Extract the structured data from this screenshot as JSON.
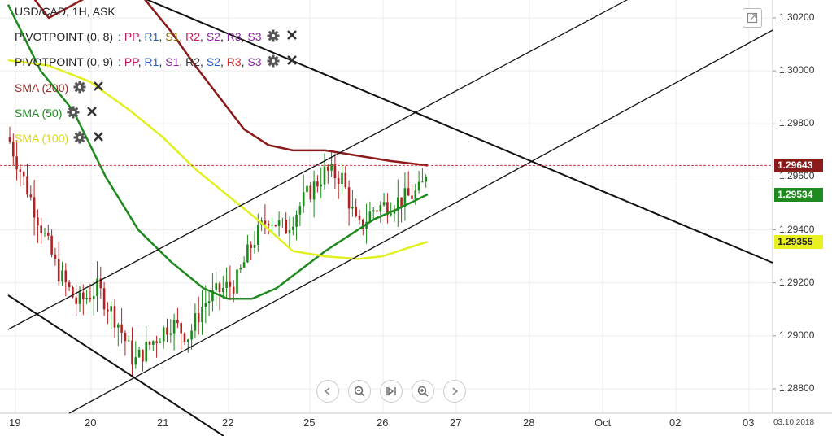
{
  "symbol_title": "USD/CAD, 1H, ASK",
  "indicators": [
    {
      "name": "PIVOTPOINT (0, 8)",
      "levels": [
        {
          "t": "PP",
          "c": "#c2185b"
        },
        {
          "t": "R1",
          "c": "#1e5fd0"
        },
        {
          "t": "S1",
          "c": "#8a6d00"
        },
        {
          "t": "R2",
          "c": "#c2185b"
        },
        {
          "t": "S2",
          "c": "#8e24aa"
        },
        {
          "t": "R3",
          "c": "#8e24aa"
        },
        {
          "t": "S3",
          "c": "#8e24aa"
        }
      ]
    },
    {
      "name": "PIVOTPOINT (0, 9)",
      "levels": [
        {
          "t": "PP",
          "c": "#c2185b"
        },
        {
          "t": "R1",
          "c": "#1e5fd0"
        },
        {
          "t": "S1",
          "c": "#8e24aa"
        },
        {
          "t": "R2",
          "c": "#333333"
        },
        {
          "t": "S2",
          "c": "#1e5fd0"
        },
        {
          "t": "R3",
          "c": "#d32f2f"
        },
        {
          "t": "S3",
          "c": "#8e24aa"
        }
      ]
    },
    {
      "name": "SMA (200)",
      "color": "#9c2a2a"
    },
    {
      "name": "SMA (50)",
      "color": "#1f8a1f"
    },
    {
      "name": "SMA (100)",
      "color": "#e0e020"
    }
  ],
  "price_labels": [
    "1.30200",
    "1.30000",
    "1.29800",
    "1.29600",
    "1.29400",
    "1.29200",
    "1.29000",
    "1.28800"
  ],
  "price_tags": [
    {
      "value": "1.29643",
      "bg": "#8b1a1a",
      "fg": "#ffffff"
    },
    {
      "value": "1.29534",
      "bg": "#1f8a1f",
      "fg": "#ffffff"
    },
    {
      "value": "1.29355",
      "bg": "#e8f020",
      "fg": "#222222"
    }
  ],
  "date_labels": [
    "19",
    "20",
    "21",
    "22",
    "25",
    "26",
    "27",
    "28",
    "Oct",
    "02",
    "03"
  ],
  "corner_date": "03.10.2018",
  "chart_data": {
    "type": "candlestick",
    "title": "USD/CAD, 1H, ASK",
    "ylim": [
      1.2875,
      1.3025
    ],
    "y_ticks": [
      1.302,
      1.3,
      1.298,
      1.296,
      1.294,
      1.292,
      1.29,
      1.288
    ],
    "x_dates": [
      "19",
      "20",
      "21",
      "22",
      "25",
      "26",
      "27",
      "28",
      "Oct",
      "02",
      "03"
    ],
    "current_price": 1.29643,
    "sma": {
      "SMA (200)": 1.29643,
      "SMA (50)": 1.29534,
      "SMA (100)": 1.29355
    },
    "colors": {
      "up": "#1a8a1a",
      "down": "#b22222",
      "sma200": "#8b1a1a",
      "sma50": "#1f8a1f",
      "sma100": "#e0f020",
      "price_line": "#d04040"
    }
  }
}
